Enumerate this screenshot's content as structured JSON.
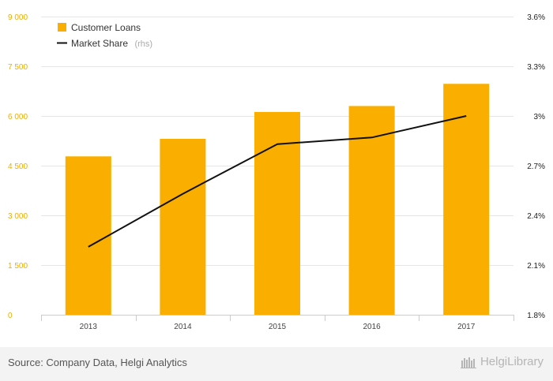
{
  "chart_data": {
    "type": "bar+line",
    "categories": [
      "2013",
      "2014",
      "2015",
      "2016",
      "2017"
    ],
    "series": [
      {
        "name": "Customer Loans",
        "type": "bar",
        "axis": "left",
        "values": [
          4780,
          5310,
          6120,
          6300,
          6970
        ]
      },
      {
        "name": "Market Share",
        "type": "line",
        "axis": "right",
        "values": [
          2.21,
          2.53,
          2.83,
          2.87,
          3.0
        ]
      }
    ],
    "legend_suffix": "(rhs)",
    "y_left": {
      "min": 0,
      "max": 9000,
      "ticks": [
        0,
        1500,
        3000,
        4500,
        6000,
        7500,
        9000
      ],
      "tick_labels": [
        "0",
        "1 500",
        "3 000",
        "4 500",
        "6 000",
        "7 500",
        "9 000"
      ]
    },
    "y_right": {
      "min": 1.8,
      "max": 3.6,
      "ticks": [
        1.8,
        2.1,
        2.4,
        2.7,
        3.0,
        3.3,
        3.6
      ],
      "tick_labels": [
        "1.8%",
        "2.1%",
        "2.4%",
        "2.7%",
        "3%",
        "3.3%",
        "3.6%"
      ]
    },
    "grid": true,
    "legend_position": "top-left"
  },
  "colors": {
    "bar": "#f9ae00",
    "line": "#111111",
    "left_ticks": "#f0ad00"
  },
  "footer": {
    "source": "Source: Company Data, Helgi Analytics",
    "brand": "HelgiLibrary"
  }
}
